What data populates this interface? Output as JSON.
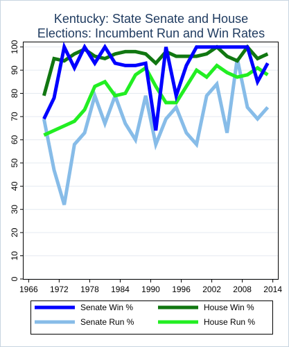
{
  "chart_data": {
    "type": "line",
    "title": [
      "Kentucky: State Senate and House",
      "Elections: Incumbent Run and Win Rates"
    ],
    "xlabel": "",
    "ylabel": "",
    "xlim": [
      1965,
      2015
    ],
    "ylim": [
      0,
      102
    ],
    "xticks": [
      1966,
      1972,
      1978,
      1984,
      1990,
      1996,
      2002,
      2008,
      2014
    ],
    "yticks": [
      0,
      10,
      20,
      30,
      40,
      50,
      60,
      70,
      80,
      90,
      100
    ],
    "grid": "horizontal",
    "legend_position": "bottom",
    "series": [
      {
        "name": "Senate Win %",
        "color": "#0000ff",
        "x": [
          1969,
          1971,
          1973,
          1975,
          1977,
          1979,
          1981,
          1983,
          1985,
          1987,
          1989,
          1991,
          1993,
          1995,
          1997,
          1999,
          2001,
          2003,
          2005,
          2007,
          2009,
          2011,
          2013
        ],
        "y": [
          69,
          78,
          100,
          91,
          100,
          93,
          100,
          93,
          92,
          92,
          93,
          64,
          100,
          79,
          92,
          100,
          100,
          100,
          100,
          100,
          100,
          85,
          93
        ]
      },
      {
        "name": "House Win %",
        "color": "#117711",
        "x": [
          1969,
          1971,
          1973,
          1975,
          1977,
          1979,
          1981,
          1983,
          1985,
          1987,
          1989,
          1991,
          1993,
          1995,
          1997,
          1999,
          2001,
          2003,
          2005,
          2007,
          2009,
          2011,
          2013
        ],
        "y": [
          79,
          95,
          94,
          97,
          99,
          96,
          95,
          97,
          98,
          98,
          97,
          93,
          98,
          96,
          96,
          96,
          97,
          100,
          96,
          94,
          100,
          95,
          97
        ]
      },
      {
        "name": "Senate Run %",
        "color": "#87bce8",
        "x": [
          1969,
          1971,
          1973,
          1975,
          1977,
          1979,
          1981,
          1983,
          1985,
          1987,
          1989,
          1991,
          1993,
          1995,
          1997,
          1999,
          2001,
          2003,
          2005,
          2007,
          2009,
          2011,
          2013
        ],
        "y": [
          69,
          47,
          32,
          58,
          63,
          79,
          67,
          79,
          67,
          60,
          79,
          58,
          69,
          74,
          63,
          58,
          79,
          84,
          63,
          95,
          74,
          69,
          74
        ]
      },
      {
        "name": "House Run %",
        "color": "#22ee22",
        "x": [
          1969,
          1971,
          1973,
          1975,
          1977,
          1979,
          1981,
          1983,
          1985,
          1987,
          1989,
          1991,
          1993,
          1995,
          1997,
          1999,
          2001,
          2003,
          2005,
          2007,
          2009,
          2011,
          2013
        ],
        "y": [
          62,
          64,
          66,
          68,
          73,
          83,
          85,
          79,
          80,
          88,
          91,
          83,
          76,
          76,
          83,
          90,
          87,
          92,
          89,
          87,
          88,
          91,
          88
        ]
      }
    ]
  }
}
